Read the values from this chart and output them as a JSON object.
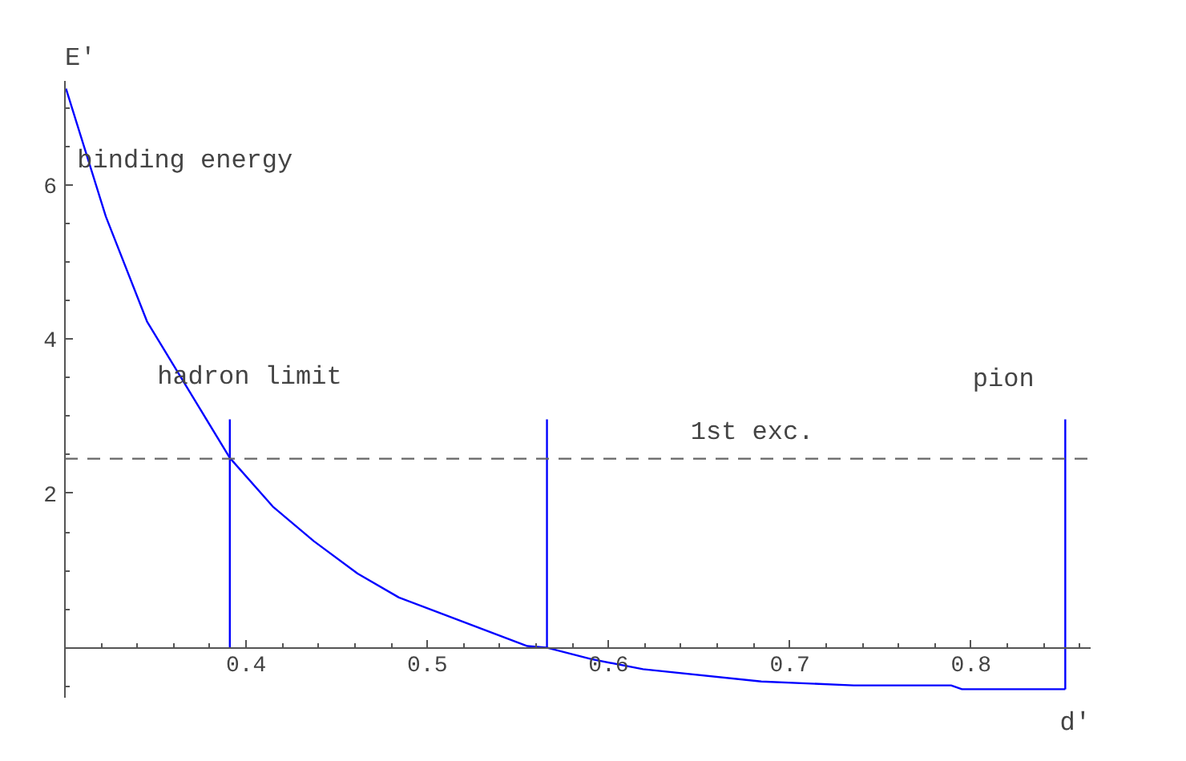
{
  "chart_data": {
    "type": "line",
    "xlabel": "d'",
    "ylabel": "E'",
    "xlim": [
      0.3,
      0.866
    ],
    "ylim": [
      -0.65,
      7.35
    ],
    "xticks": [
      0.4,
      0.5,
      0.6,
      0.7,
      0.8
    ],
    "yticks": [
      2,
      4,
      6
    ],
    "grid": false,
    "marker": "none",
    "series": [
      {
        "color": "#0000ff",
        "x": [
          0.3006,
          0.3226,
          0.3453,
          0.391,
          0.4147,
          0.4374,
          0.4615,
          0.4843,
          0.5552,
          0.5657,
          0.5906,
          0.619,
          0.6843,
          0.7353,
          0.789,
          0.795,
          0.852
        ],
        "values": [
          7.25,
          5.59,
          4.23,
          2.46,
          1.83,
          1.38,
          0.96,
          0.65,
          0.02,
          0,
          -0.15,
          -0.28,
          -0.44,
          -0.49,
          -0.49,
          -0.54,
          -0.54
        ]
      },
      {
        "color": "#0000ff",
        "x": [
          0.391,
          0.391
        ],
        "values": [
          0,
          2.96
        ]
      },
      {
        "color": "#0000ff",
        "x": [
          0.566,
          0.566
        ],
        "values": [
          0,
          2.96
        ]
      },
      {
        "color": "#0000ff",
        "x": [
          0.852,
          0.852
        ],
        "values": [
          -0.54,
          2.96
        ]
      }
    ],
    "ref_lines": [
      {
        "axis": "y",
        "value": 2.45,
        "color": "#666666",
        "line_style": "dashed"
      }
    ],
    "annotations": [
      "binding  energy",
      "hadron  limit",
      "1st exc.",
      "pion"
    ]
  }
}
